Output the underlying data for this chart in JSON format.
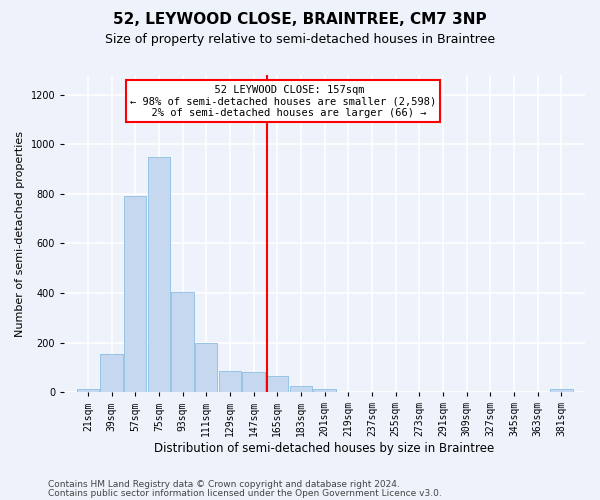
{
  "title": "52, LEYWOOD CLOSE, BRAINTREE, CM7 3NP",
  "subtitle": "Size of property relative to semi-detached houses in Braintree",
  "xlabel": "Distribution of semi-detached houses by size in Braintree",
  "ylabel": "Number of semi-detached properties",
  "bar_color": "#c5d8f0",
  "bar_edge_color": "#8bbfe0",
  "background_color": "#eef2fb",
  "grid_color": "white",
  "property_line_x": 157,
  "property_label": "52 LEYWOOD CLOSE: 157sqm",
  "pct_smaller": "98% of semi-detached houses are smaller (2,598)",
  "pct_larger": "2% of semi-detached houses are larger (66)",
  "annotation_box_color": "white",
  "annotation_box_edge": "red",
  "property_line_color": "red",
  "categories": [
    "21sqm",
    "39sqm",
    "57sqm",
    "75sqm",
    "93sqm",
    "111sqm",
    "129sqm",
    "147sqm",
    "165sqm",
    "183sqm",
    "201sqm",
    "219sqm",
    "237sqm",
    "255sqm",
    "273sqm",
    "291sqm",
    "309sqm",
    "327sqm",
    "345sqm",
    "363sqm",
    "381sqm"
  ],
  "bin_edges": [
    12,
    30,
    48,
    66,
    84,
    102,
    120,
    138,
    156,
    174,
    192,
    210,
    228,
    246,
    264,
    282,
    300,
    318,
    336,
    354,
    372,
    390
  ],
  "values": [
    12,
    155,
    790,
    950,
    405,
    200,
    85,
    80,
    65,
    25,
    12,
    0,
    0,
    0,
    0,
    0,
    0,
    0,
    0,
    0,
    12
  ],
  "ylim": [
    0,
    1280
  ],
  "yticks": [
    0,
    200,
    400,
    600,
    800,
    1000,
    1200
  ],
  "footer1": "Contains HM Land Registry data © Crown copyright and database right 2024.",
  "footer2": "Contains public sector information licensed under the Open Government Licence v3.0.",
  "title_fontsize": 11,
  "subtitle_fontsize": 9,
  "axis_label_fontsize": 8,
  "tick_fontsize": 7,
  "footer_fontsize": 6.5,
  "annot_fontsize": 7.5
}
